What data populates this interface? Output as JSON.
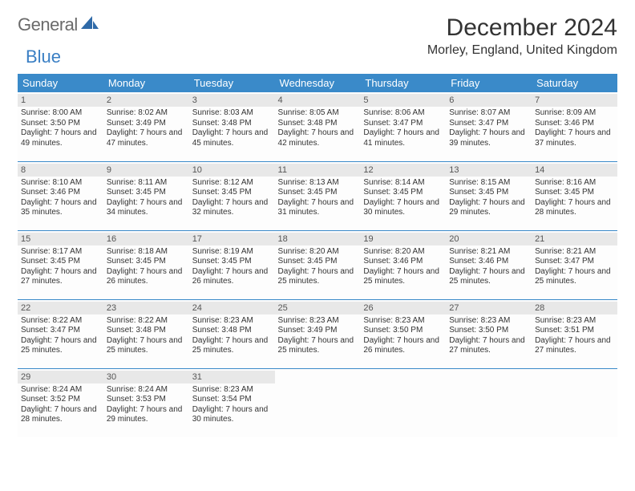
{
  "brand": {
    "word1": "General",
    "word2": "Blue"
  },
  "title": "December 2024",
  "location": "Morley, England, United Kingdom",
  "header_bg": "#3a8ac9",
  "day_header_bg": "#e8e8e8",
  "border_color": "#3a8ac9",
  "columns": [
    "Sunday",
    "Monday",
    "Tuesday",
    "Wednesday",
    "Thursday",
    "Friday",
    "Saturday"
  ],
  "weeks": [
    [
      {
        "n": "1",
        "sr": "8:00 AM",
        "ss": "3:50 PM",
        "dl": "7 hours and 49 minutes."
      },
      {
        "n": "2",
        "sr": "8:02 AM",
        "ss": "3:49 PM",
        "dl": "7 hours and 47 minutes."
      },
      {
        "n": "3",
        "sr": "8:03 AM",
        "ss": "3:48 PM",
        "dl": "7 hours and 45 minutes."
      },
      {
        "n": "4",
        "sr": "8:05 AM",
        "ss": "3:48 PM",
        "dl": "7 hours and 42 minutes."
      },
      {
        "n": "5",
        "sr": "8:06 AM",
        "ss": "3:47 PM",
        "dl": "7 hours and 41 minutes."
      },
      {
        "n": "6",
        "sr": "8:07 AM",
        "ss": "3:47 PM",
        "dl": "7 hours and 39 minutes."
      },
      {
        "n": "7",
        "sr": "8:09 AM",
        "ss": "3:46 PM",
        "dl": "7 hours and 37 minutes."
      }
    ],
    [
      {
        "n": "8",
        "sr": "8:10 AM",
        "ss": "3:46 PM",
        "dl": "7 hours and 35 minutes."
      },
      {
        "n": "9",
        "sr": "8:11 AM",
        "ss": "3:45 PM",
        "dl": "7 hours and 34 minutes."
      },
      {
        "n": "10",
        "sr": "8:12 AM",
        "ss": "3:45 PM",
        "dl": "7 hours and 32 minutes."
      },
      {
        "n": "11",
        "sr": "8:13 AM",
        "ss": "3:45 PM",
        "dl": "7 hours and 31 minutes."
      },
      {
        "n": "12",
        "sr": "8:14 AM",
        "ss": "3:45 PM",
        "dl": "7 hours and 30 minutes."
      },
      {
        "n": "13",
        "sr": "8:15 AM",
        "ss": "3:45 PM",
        "dl": "7 hours and 29 minutes."
      },
      {
        "n": "14",
        "sr": "8:16 AM",
        "ss": "3:45 PM",
        "dl": "7 hours and 28 minutes."
      }
    ],
    [
      {
        "n": "15",
        "sr": "8:17 AM",
        "ss": "3:45 PM",
        "dl": "7 hours and 27 minutes."
      },
      {
        "n": "16",
        "sr": "8:18 AM",
        "ss": "3:45 PM",
        "dl": "7 hours and 26 minutes."
      },
      {
        "n": "17",
        "sr": "8:19 AM",
        "ss": "3:45 PM",
        "dl": "7 hours and 26 minutes."
      },
      {
        "n": "18",
        "sr": "8:20 AM",
        "ss": "3:45 PM",
        "dl": "7 hours and 25 minutes."
      },
      {
        "n": "19",
        "sr": "8:20 AM",
        "ss": "3:46 PM",
        "dl": "7 hours and 25 minutes."
      },
      {
        "n": "20",
        "sr": "8:21 AM",
        "ss": "3:46 PM",
        "dl": "7 hours and 25 minutes."
      },
      {
        "n": "21",
        "sr": "8:21 AM",
        "ss": "3:47 PM",
        "dl": "7 hours and 25 minutes."
      }
    ],
    [
      {
        "n": "22",
        "sr": "8:22 AM",
        "ss": "3:47 PM",
        "dl": "7 hours and 25 minutes."
      },
      {
        "n": "23",
        "sr": "8:22 AM",
        "ss": "3:48 PM",
        "dl": "7 hours and 25 minutes."
      },
      {
        "n": "24",
        "sr": "8:23 AM",
        "ss": "3:48 PM",
        "dl": "7 hours and 25 minutes."
      },
      {
        "n": "25",
        "sr": "8:23 AM",
        "ss": "3:49 PM",
        "dl": "7 hours and 25 minutes."
      },
      {
        "n": "26",
        "sr": "8:23 AM",
        "ss": "3:50 PM",
        "dl": "7 hours and 26 minutes."
      },
      {
        "n": "27",
        "sr": "8:23 AM",
        "ss": "3:50 PM",
        "dl": "7 hours and 27 minutes."
      },
      {
        "n": "28",
        "sr": "8:23 AM",
        "ss": "3:51 PM",
        "dl": "7 hours and 27 minutes."
      }
    ],
    [
      {
        "n": "29",
        "sr": "8:24 AM",
        "ss": "3:52 PM",
        "dl": "7 hours and 28 minutes."
      },
      {
        "n": "30",
        "sr": "8:24 AM",
        "ss": "3:53 PM",
        "dl": "7 hours and 29 minutes."
      },
      {
        "n": "31",
        "sr": "8:23 AM",
        "ss": "3:54 PM",
        "dl": "7 hours and 30 minutes."
      },
      {
        "empty": true
      },
      {
        "empty": true
      },
      {
        "empty": true
      },
      {
        "empty": true
      }
    ]
  ],
  "labels": {
    "sunrise": "Sunrise: ",
    "sunset": "Sunset: ",
    "daylight": "Daylight: "
  }
}
